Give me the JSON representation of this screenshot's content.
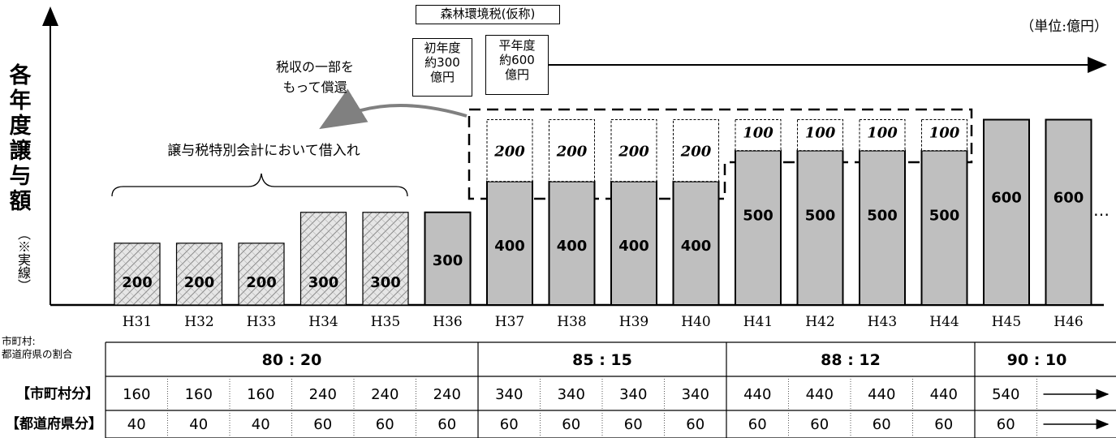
{
  "chart_data": {
    "type": "bar",
    "title": "",
    "ylabel": "各年度譲与額",
    "ylabel_note": "（※実線）",
    "unit": "（単位:億円）",
    "categories": [
      "H31",
      "H32",
      "H33",
      "H34",
      "H35",
      "H36",
      "H37",
      "H38",
      "H39",
      "H40",
      "H41",
      "H42",
      "H43",
      "H44",
      "H45",
      "H46"
    ],
    "values": [
      200,
      200,
      200,
      300,
      300,
      300,
      400,
      400,
      400,
      400,
      500,
      500,
      500,
      500,
      600,
      600
    ],
    "borrowed_years": [
      "H31",
      "H32",
      "H33",
      "H34",
      "H35"
    ],
    "dashed_additions": [
      null,
      null,
      null,
      null,
      null,
      null,
      200,
      200,
      200,
      200,
      100,
      100,
      100,
      100,
      null,
      null
    ],
    "continuation": "…",
    "ylim": [
      0,
      650
    ],
    "colors": {
      "bar_fill": "#bfbfbf",
      "hatch_fill": "#d9d9d9",
      "arrow": "#808080"
    }
  },
  "annotations": {
    "tax_box": "森林環境税(仮称)",
    "first_year_lines": [
      "初年度",
      "約300",
      "億円"
    ],
    "normal_year_lines": [
      "平年度",
      "約600",
      "億円"
    ],
    "repay_lines": [
      "税収の一部を",
      "もって償還"
    ],
    "borrow_label": "譲与税特別会計において借入れ"
  },
  "table": {
    "ratio_caption_lines": [
      "市町村:",
      "都道府県の割合"
    ],
    "ratios": [
      {
        "label": "80 : 20"
      },
      {
        "label": "85 : 15"
      },
      {
        "label": "88 : 12"
      },
      {
        "label": "90 : 10"
      }
    ],
    "municipal_label": "【市町村分】",
    "prefecture_label": "【都道府県分】",
    "municipal": [
      160,
      160,
      160,
      240,
      240,
      240,
      340,
      340,
      340,
      340,
      440,
      440,
      440,
      440,
      540
    ],
    "prefecture": [
      40,
      40,
      40,
      60,
      60,
      60,
      60,
      60,
      60,
      60,
      60,
      60,
      60,
      60,
      60
    ]
  }
}
